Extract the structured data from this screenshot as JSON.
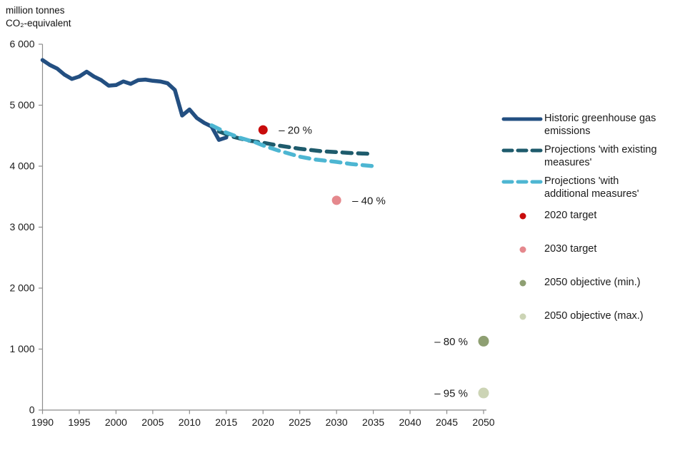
{
  "axis_unit_label": {
    "line1": "million tonnes",
    "line2": "CO₂-equivalent"
  },
  "colors": {
    "historic": "#234F81",
    "wem": "#1E5B6C",
    "wam": "#4DB6D2",
    "target_2020": "#C80C0C",
    "target_2030": "#E5888D",
    "objective_2050_min": "#8E9F72",
    "objective_2050_max": "#CCD4B5",
    "axis": "#8C8C8C",
    "text": "#1a1a1a"
  },
  "chart_data": {
    "type": "line",
    "title": "",
    "ylabel": "million tonnes CO₂-equivalent",
    "xlabel": "",
    "grid": false,
    "legend_position": "right",
    "x_axis": {
      "min": 1990,
      "max": 2050,
      "ticks": [
        1990,
        1995,
        2000,
        2005,
        2010,
        2015,
        2020,
        2025,
        2030,
        2035,
        2040,
        2045,
        2050
      ]
    },
    "y_axis": {
      "min": 0,
      "max": 6000,
      "ticks": [
        {
          "value": 0,
          "label": "0"
        },
        {
          "value": 1000,
          "label": "1 000"
        },
        {
          "value": 2000,
          "label": "2 000"
        },
        {
          "value": 3000,
          "label": "3 000"
        },
        {
          "value": 4000,
          "label": "4 000"
        },
        {
          "value": 5000,
          "label": "5 000"
        },
        {
          "value": 6000,
          "label": "6 000"
        }
      ]
    },
    "series": [
      {
        "id": "historic",
        "name": "Historic greenhouse gas emissions",
        "style": "solid",
        "color": "#234F81",
        "points": [
          [
            1990,
            5740
          ],
          [
            1991,
            5660
          ],
          [
            1992,
            5600
          ],
          [
            1993,
            5500
          ],
          [
            1994,
            5430
          ],
          [
            1995,
            5470
          ],
          [
            1996,
            5550
          ],
          [
            1997,
            5470
          ],
          [
            1998,
            5410
          ],
          [
            1999,
            5320
          ],
          [
            2000,
            5330
          ],
          [
            2001,
            5390
          ],
          [
            2002,
            5350
          ],
          [
            2003,
            5410
          ],
          [
            2004,
            5420
          ],
          [
            2005,
            5400
          ],
          [
            2006,
            5390
          ],
          [
            2007,
            5360
          ],
          [
            2008,
            5250
          ],
          [
            2009,
            4830
          ],
          [
            2010,
            4930
          ],
          [
            2011,
            4790
          ],
          [
            2012,
            4710
          ],
          [
            2013,
            4650
          ],
          [
            2014,
            4430
          ],
          [
            2015,
            4470
          ]
        ]
      },
      {
        "id": "wem",
        "name": "Projections 'with existing measures'",
        "style": "dashed",
        "color": "#1E5B6C",
        "points": [
          [
            2014,
            4570
          ],
          [
            2016,
            4480
          ],
          [
            2018,
            4420
          ],
          [
            2020,
            4385
          ],
          [
            2022,
            4340
          ],
          [
            2025,
            4285
          ],
          [
            2028,
            4245
          ],
          [
            2030,
            4230
          ],
          [
            2032,
            4215
          ],
          [
            2035,
            4200
          ]
        ]
      },
      {
        "id": "wam",
        "name": "Projections 'with additional measures'",
        "style": "dashed",
        "color": "#4DB6D2",
        "points": [
          [
            2013,
            4670
          ],
          [
            2015,
            4550
          ],
          [
            2017,
            4460
          ],
          [
            2019,
            4390
          ],
          [
            2020,
            4340
          ],
          [
            2022,
            4260
          ],
          [
            2025,
            4155
          ],
          [
            2027,
            4110
          ],
          [
            2030,
            4070
          ],
          [
            2032,
            4035
          ],
          [
            2035,
            4000
          ]
        ]
      }
    ],
    "targets": [
      {
        "id": "target-2020",
        "name": "2020 target",
        "year": 2020,
        "value": 4595,
        "color": "#C80C0C",
        "radius": 6.5,
        "label": "– 20 %",
        "label_side": "right"
      },
      {
        "id": "target-2030",
        "name": "2030 target",
        "year": 2030,
        "value": 3440,
        "color": "#E5888D",
        "radius": 6.5,
        "label": "– 40 %",
        "label_side": "right"
      },
      {
        "id": "objective-2050-min",
        "name": "2050 objective (min.)",
        "year": 2050,
        "value": 1130,
        "color": "#8E9F72",
        "radius": 7.5,
        "label": "– 80 %",
        "label_side": "left"
      },
      {
        "id": "objective-2050-max",
        "name": "2050 objective (max.)",
        "year": 2050,
        "value": 280,
        "color": "#CCD4B5",
        "radius": 7.5,
        "label": "– 95 %",
        "label_side": "left"
      }
    ]
  },
  "legend": {
    "items": [
      {
        "id": "historic",
        "marker": "line-solid",
        "color": "#234F81",
        "label": "Historic greenhouse gas emissions"
      },
      {
        "id": "wem",
        "marker": "line-dashed",
        "color": "#1E5B6C",
        "label": "Projections 'with existing measures'"
      },
      {
        "id": "wam",
        "marker": "line-dashed",
        "color": "#4DB6D2",
        "label": "Projections 'with additional measures'"
      },
      {
        "id": "target-2020",
        "marker": "dot",
        "color": "#C80C0C",
        "label": "2020 target"
      },
      {
        "id": "target-2030",
        "marker": "dot",
        "color": "#E5888D",
        "label": "2030 target"
      },
      {
        "id": "objective-2050-min",
        "marker": "dot",
        "color": "#8E9F72",
        "label": "2050 objective (min.)"
      },
      {
        "id": "objective-2050-max",
        "marker": "dot",
        "color": "#CCD4B5",
        "label": "2050 objective (max.)"
      }
    ]
  }
}
